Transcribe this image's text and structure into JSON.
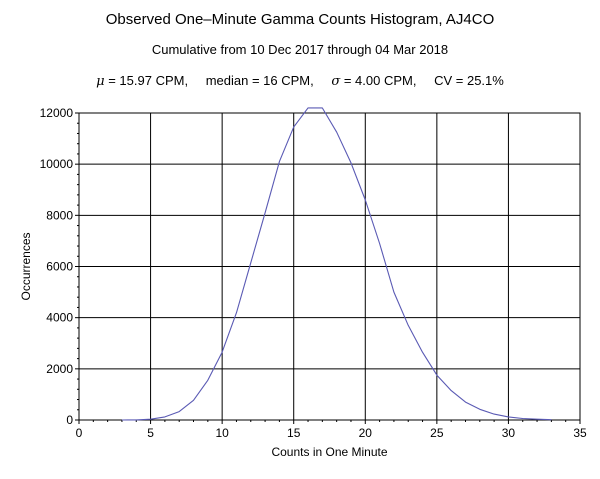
{
  "chart_data": {
    "type": "line",
    "title": "Observed One–Minute Gamma Counts Histogram, AJ4CO",
    "subtitle": "Cumulative from 10 Dec 2017 through 04 Mar 2018",
    "stats": {
      "mu_symbol": "μ",
      "mu": " = 15.97 CPM,",
      "median": "median = 16 CPM,",
      "sigma_symbol": "σ",
      "sigma": " = 4.00 CPM,",
      "cv": "CV = 25.1%"
    },
    "xlabel": "Counts in One Minute",
    "ylabel": "Occurrences",
    "xlim": [
      0,
      35
    ],
    "ylim": [
      0,
      12000
    ],
    "xticks": [
      0,
      5,
      10,
      15,
      20,
      25,
      30,
      35
    ],
    "yticks": [
      0,
      2000,
      4000,
      6000,
      8000,
      10000,
      12000
    ],
    "grid": true,
    "line_color": "#5a5ab4",
    "series": [
      {
        "x": [
          3,
          4,
          5,
          6,
          7,
          8,
          9,
          10,
          11,
          12,
          13,
          14,
          15,
          16,
          17,
          18,
          19,
          20,
          21,
          22,
          23,
          24,
          25,
          26,
          27,
          28,
          29,
          30,
          31,
          32,
          33
        ],
        "values": [
          0,
          5,
          30,
          120,
          330,
          770,
          1550,
          2650,
          4200,
          6150,
          8100,
          10100,
          11450,
          12200,
          12200,
          11250,
          10050,
          8600,
          6900,
          5000,
          3700,
          2650,
          1750,
          1150,
          700,
          420,
          230,
          120,
          60,
          30,
          10
        ]
      }
    ]
  }
}
